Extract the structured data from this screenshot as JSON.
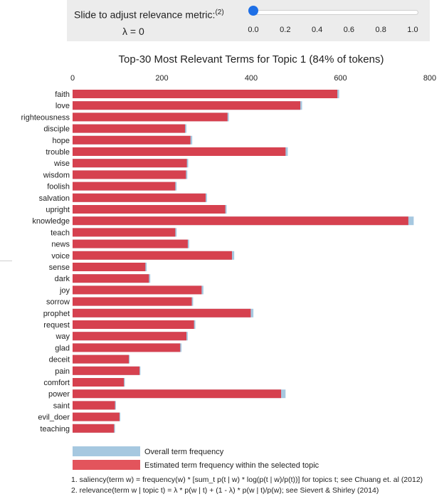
{
  "slider": {
    "title": "Slide to adjust relevance metric:",
    "title_note": "(2)",
    "lambda_label": "λ = 0",
    "value": 0,
    "ticks": [
      "0.0",
      "0.2",
      "0.4",
      "0.6",
      "0.8",
      "1.0"
    ],
    "handle_color": "#1e6fe6"
  },
  "chart_data": {
    "type": "bar",
    "orientation": "horizontal",
    "title": "Top-30 Most Relevant Terms for Topic 1 (84% of tokens)",
    "xlim": [
      0,
      800
    ],
    "xticks": [
      "0",
      "200",
      "400",
      "600",
      "800"
    ],
    "categories": [
      "faith",
      "love",
      "righteousness",
      "disciple",
      "hope",
      "trouble",
      "wise",
      "wisdom",
      "foolish",
      "salvation",
      "upright",
      "knowledge",
      "teach",
      "news",
      "voice",
      "sense",
      "dark",
      "joy",
      "sorrow",
      "prophet",
      "request",
      "way",
      "glad",
      "deceit",
      "pain",
      "comfort",
      "power",
      "saint",
      "evil_doer",
      "teaching"
    ],
    "series": [
      {
        "name": "Overall term frequency",
        "color": "#a6c8e0",
        "values": [
          597,
          514,
          350,
          255,
          268,
          482,
          259,
          257,
          233,
          301,
          345,
          764,
          233,
          261,
          362,
          166,
          174,
          293,
          270,
          405,
          275,
          258,
          244,
          128,
          152,
          117,
          477,
          97,
          107,
          95
        ]
      },
      {
        "name": "Estimated term frequency within the selected topic",
        "color": "#d6414f",
        "values": [
          593,
          510,
          347,
          252,
          264,
          477,
          256,
          254,
          230,
          298,
          342,
          752,
          230,
          258,
          357,
          163,
          171,
          289,
          267,
          399,
          272,
          255,
          241,
          126,
          150,
          115,
          467,
          95,
          105,
          93
        ]
      }
    ],
    "legend_position": "bottom"
  },
  "footnotes": [
    "1. saliency(term w) = frequency(w) * [sum_t p(t | w) * log(p(t | w)/p(t))] for topics t; see Chuang et. al (2012)",
    "2. relevance(term w | topic t) = λ * p(w | t) + (1 - λ) * p(w | t)/p(w); see Sievert & Shirley (2014)"
  ]
}
